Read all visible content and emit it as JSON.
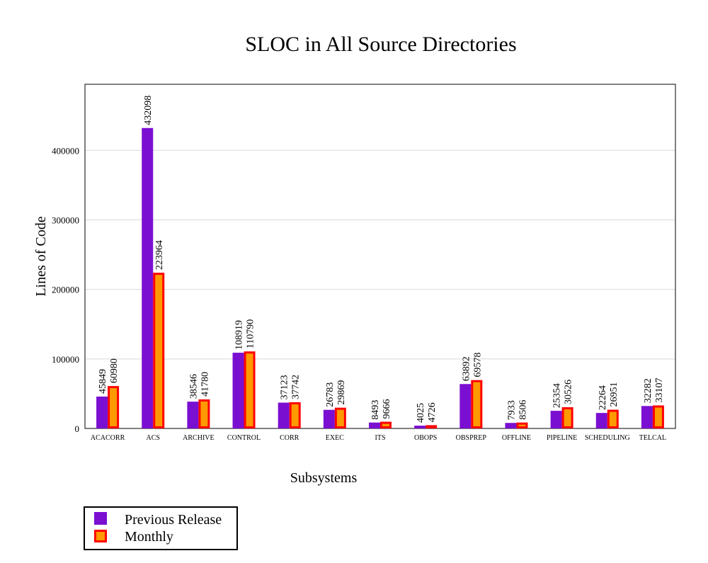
{
  "chart_data": {
    "type": "bar",
    "title": "SLOC in All Source Directories",
    "xlabel": "Subsystems",
    "ylabel": "Lines of Code",
    "ylim": [
      0,
      495000
    ],
    "yticks": [
      0,
      100000,
      200000,
      300000,
      400000
    ],
    "grid": true,
    "legend_position": "bottom-left",
    "categories": [
      "ACACORR",
      "ACS",
      "ARCHIVE",
      "CONTROL",
      "CORR",
      "EXEC",
      "ITS",
      "OBOPS",
      "OBSPREP",
      "OFFLINE",
      "PIPELINE",
      "SCHEDULING",
      "TELCAL"
    ],
    "series": [
      {
        "name": "Previous Release",
        "color": "#7b0fd1",
        "values": [
          45849,
          432098,
          38546,
          108919,
          37123,
          26783,
          8493,
          4025,
          63892,
          7933,
          25354,
          22264,
          32282
        ]
      },
      {
        "name": "Monthly",
        "color": "#ff9900",
        "border_color": "#ff0000",
        "values": [
          60980,
          223964,
          41780,
          110790,
          37742,
          29869,
          9666,
          4726,
          69578,
          8506,
          30526,
          26951,
          33107
        ]
      }
    ]
  }
}
